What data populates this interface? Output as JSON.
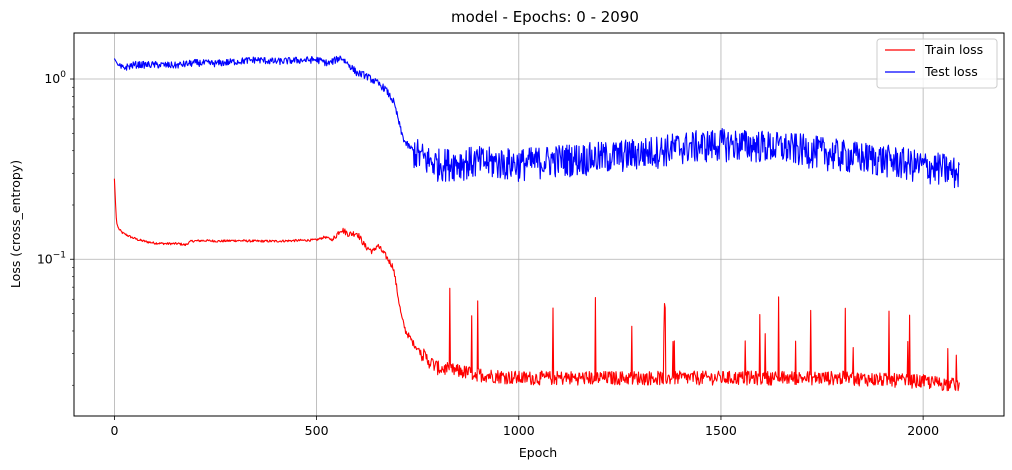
{
  "chart_data": {
    "type": "line",
    "title": "model - Epochs: 0 - 2090",
    "xlabel": "Epoch",
    "ylabel": "Loss (cross_entropy)",
    "yscale": "log",
    "xlim": [
      -100,
      2200
    ],
    "ylim": [
      0.0135,
      1.8
    ],
    "grid": true,
    "legend_position": "top-right",
    "x_ticks": [
      {
        "value": 0,
        "label": "0"
      },
      {
        "value": 500,
        "label": "500"
      },
      {
        "value": 1000,
        "label": "1000"
      },
      {
        "value": 1500,
        "label": "1500"
      },
      {
        "value": 2000,
        "label": "2000"
      }
    ],
    "y_ticks": [
      {
        "value": 1.0,
        "base": "10",
        "exp": "0"
      },
      {
        "value": 0.1,
        "base": "10",
        "exp": "−1"
      }
    ],
    "series": [
      {
        "name": "Train loss",
        "color": "#ff0000",
        "points": [
          [
            0,
            0.28
          ],
          [
            5,
            0.16
          ],
          [
            10,
            0.148
          ],
          [
            20,
            0.14
          ],
          [
            40,
            0.133
          ],
          [
            60,
            0.128
          ],
          [
            80,
            0.125
          ],
          [
            100,
            0.123
          ],
          [
            130,
            0.122
          ],
          [
            160,
            0.122
          ],
          [
            175,
            0.12
          ],
          [
            190,
            0.126
          ],
          [
            220,
            0.127
          ],
          [
            260,
            0.126
          ],
          [
            300,
            0.127
          ],
          [
            350,
            0.126
          ],
          [
            400,
            0.126
          ],
          [
            450,
            0.127
          ],
          [
            500,
            0.128
          ],
          [
            520,
            0.133
          ],
          [
            540,
            0.128
          ],
          [
            560,
            0.147
          ],
          [
            580,
            0.138
          ],
          [
            600,
            0.14
          ],
          [
            620,
            0.118
          ],
          [
            640,
            0.11
          ],
          [
            650,
            0.12
          ],
          [
            670,
            0.105
          ],
          [
            690,
            0.09
          ],
          [
            700,
            0.065
          ],
          [
            710,
            0.048
          ],
          [
            720,
            0.04
          ],
          [
            740,
            0.034
          ],
          [
            760,
            0.03
          ],
          [
            780,
            0.027
          ],
          [
            800,
            0.025
          ],
          [
            850,
            0.024
          ],
          [
            900,
            0.023
          ],
          [
            1000,
            0.022
          ],
          [
            1200,
            0.022
          ],
          [
            1400,
            0.022
          ],
          [
            1600,
            0.022
          ],
          [
            1800,
            0.022
          ],
          [
            2000,
            0.021
          ],
          [
            2090,
            0.02
          ]
        ]
      },
      {
        "name": "Test loss",
        "color": "#0000ff",
        "points": [
          [
            0,
            1.3
          ],
          [
            10,
            1.18
          ],
          [
            20,
            1.15
          ],
          [
            50,
            1.2
          ],
          [
            100,
            1.2
          ],
          [
            150,
            1.19
          ],
          [
            200,
            1.23
          ],
          [
            250,
            1.22
          ],
          [
            300,
            1.25
          ],
          [
            350,
            1.28
          ],
          [
            400,
            1.25
          ],
          [
            450,
            1.27
          ],
          [
            500,
            1.28
          ],
          [
            530,
            1.22
          ],
          [
            560,
            1.32
          ],
          [
            580,
            1.2
          ],
          [
            600,
            1.08
          ],
          [
            620,
            1.05
          ],
          [
            650,
            0.95
          ],
          [
            670,
            0.88
          ],
          [
            690,
            0.75
          ],
          [
            700,
            0.62
          ],
          [
            710,
            0.5
          ],
          [
            720,
            0.44
          ],
          [
            740,
            0.4
          ],
          [
            760,
            0.37
          ],
          [
            780,
            0.35
          ],
          [
            800,
            0.34
          ],
          [
            900,
            0.35
          ],
          [
            1000,
            0.34
          ],
          [
            1100,
            0.36
          ],
          [
            1200,
            0.37
          ],
          [
            1300,
            0.39
          ],
          [
            1400,
            0.42
          ],
          [
            1500,
            0.44
          ],
          [
            1600,
            0.43
          ],
          [
            1700,
            0.41
          ],
          [
            1800,
            0.38
          ],
          [
            1900,
            0.36
          ],
          [
            2000,
            0.33
          ],
          [
            2050,
            0.32
          ],
          [
            2090,
            0.3
          ]
        ]
      }
    ]
  }
}
